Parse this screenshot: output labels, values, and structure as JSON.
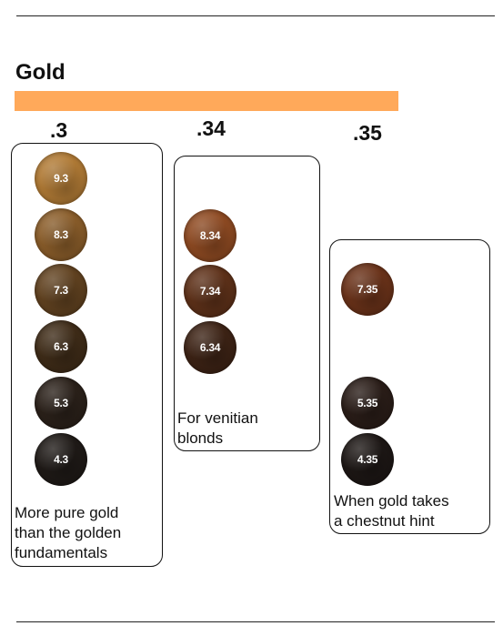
{
  "title": "Gold",
  "colors": {
    "accent_bar": "#ffa95a"
  },
  "columns": [
    {
      "label": ".3",
      "caption": [
        "More pure gold",
        "than the golden",
        "fundamentals"
      ],
      "shades": [
        {
          "code": "9.3",
          "color": "#b07a35"
        },
        {
          "code": "8.3",
          "color": "#8a5d2a"
        },
        {
          "code": "7.3",
          "color": "#614220"
        },
        {
          "code": "6.3",
          "color": "#3f2c18"
        },
        {
          "code": "5.3",
          "color": "#2b211a"
        },
        {
          "code": "4.3",
          "color": "#1f1a17"
        }
      ]
    },
    {
      "label": ".34",
      "caption": [
        "For venitian",
        "blonds"
      ],
      "shades": [
        {
          "code": "8.34",
          "color": "#8e4a22"
        },
        {
          "code": "7.34",
          "color": "#5e3119"
        },
        {
          "code": "6.34",
          "color": "#3d2315"
        }
      ]
    },
    {
      "label": ".35",
      "caption": [
        "When gold takes",
        "a chestnut hint"
      ],
      "shades": [
        {
          "code": "7.35",
          "color": "#6a3219"
        },
        {
          "code": "5.35",
          "color": "#2a1d18"
        },
        {
          "code": "4.35",
          "color": "#1d1715"
        }
      ]
    }
  ]
}
